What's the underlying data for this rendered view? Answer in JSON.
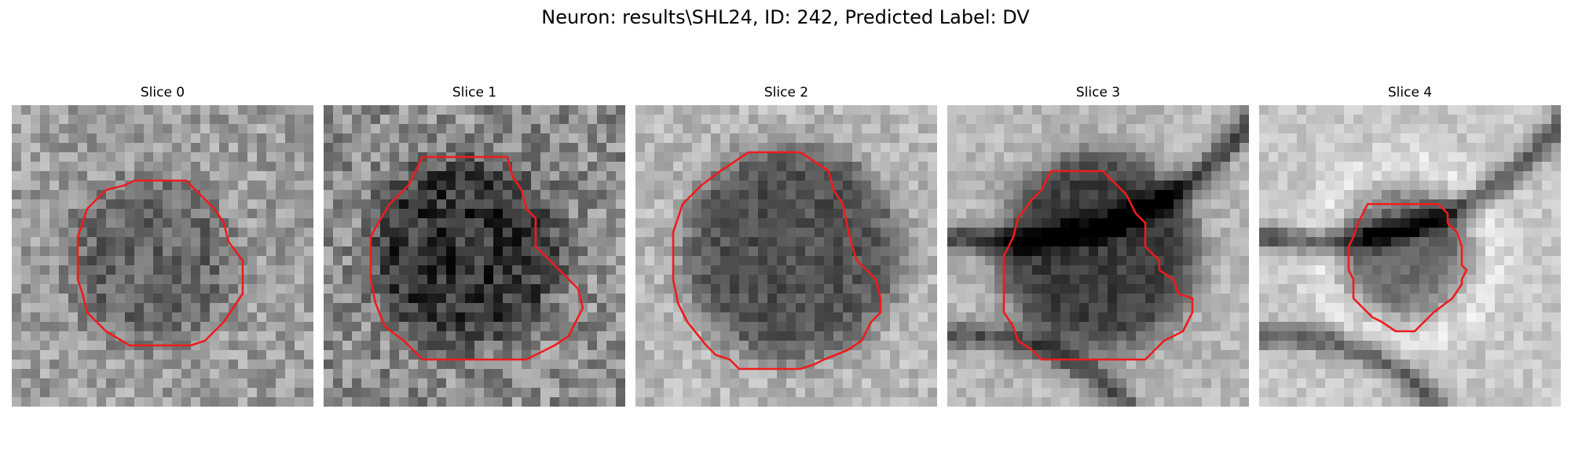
{
  "figure": {
    "title": "Neuron: results\\SHL24, ID: 242, Predicted Label: DV"
  },
  "panels": [
    {
      "title": "Slice 0"
    },
    {
      "title": "Slice 1"
    },
    {
      "title": "Slice 2"
    },
    {
      "title": "Slice 3"
    },
    {
      "title": "Slice 4"
    }
  ],
  "colors": {
    "contour": "#ee1c1c",
    "background": "#ffffff"
  }
}
